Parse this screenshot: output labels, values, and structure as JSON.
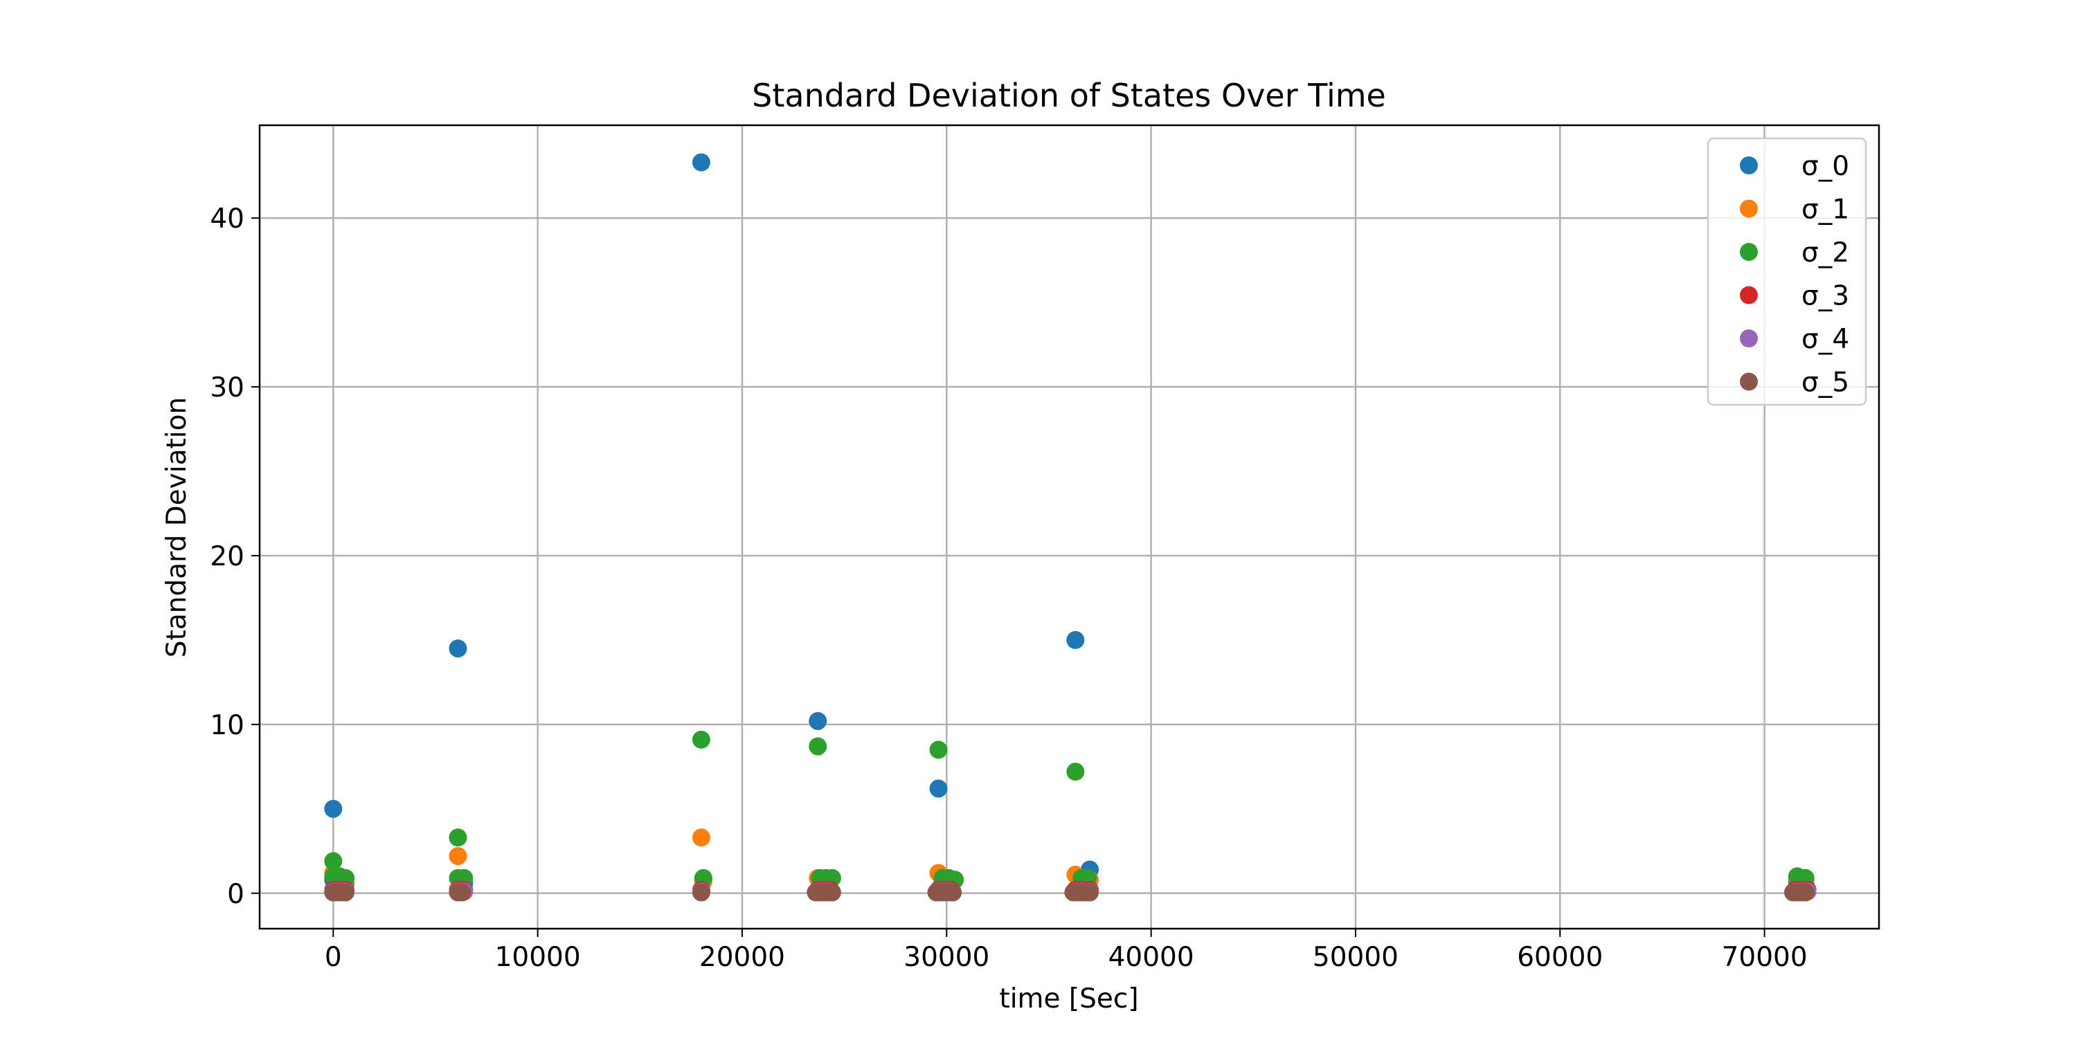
{
  "chart_data": {
    "type": "scatter",
    "title": "Standard Deviation of States Over Time",
    "xlabel": "time [Sec]",
    "ylabel": "Standard Deviation",
    "xlim": [
      -3600,
      75600
    ],
    "ylim": [
      -2.1,
      45.5
    ],
    "xticks": [
      0,
      10000,
      20000,
      30000,
      40000,
      50000,
      60000,
      70000
    ],
    "yticks": [
      0,
      10,
      20,
      30,
      40
    ],
    "grid": true,
    "legend_position": "upper-right",
    "series": [
      {
        "name": "σ_0",
        "color": "#1f77b4",
        "points": [
          [
            0,
            5.0
          ],
          [
            0,
            0.8
          ],
          [
            300,
            0.7
          ],
          [
            600,
            0.6
          ],
          [
            6100,
            14.5
          ],
          [
            6200,
            0.7
          ],
          [
            6400,
            0.6
          ],
          [
            18000,
            43.3
          ],
          [
            18100,
            0.8
          ],
          [
            23700,
            10.2
          ],
          [
            23900,
            0.7
          ],
          [
            24200,
            0.6
          ],
          [
            29600,
            6.2
          ],
          [
            29800,
            0.8
          ],
          [
            30200,
            0.7
          ],
          [
            36300,
            15.0
          ],
          [
            36600,
            0.8
          ],
          [
            37000,
            1.4
          ],
          [
            71600,
            0.7
          ],
          [
            72000,
            0.6
          ]
        ]
      },
      {
        "name": "σ_1",
        "color": "#ff7f0e",
        "points": [
          [
            0,
            1.2
          ],
          [
            300,
            0.9
          ],
          [
            600,
            0.8
          ],
          [
            6100,
            2.2
          ],
          [
            6300,
            0.8
          ],
          [
            18000,
            3.3
          ],
          [
            18100,
            0.7
          ],
          [
            23700,
            0.9
          ],
          [
            24000,
            0.8
          ],
          [
            24300,
            0.8
          ],
          [
            29600,
            1.2
          ],
          [
            29900,
            0.9
          ],
          [
            30200,
            0.8
          ],
          [
            36300,
            1.1
          ],
          [
            36600,
            0.9
          ],
          [
            37000,
            0.8
          ],
          [
            71600,
            0.9
          ],
          [
            72000,
            0.8
          ]
        ]
      },
      {
        "name": "σ_2",
        "color": "#2ca02c",
        "points": [
          [
            0,
            1.9
          ],
          [
            0,
            1.0
          ],
          [
            300,
            1.0
          ],
          [
            600,
            0.9
          ],
          [
            6100,
            3.3
          ],
          [
            6100,
            0.9
          ],
          [
            6400,
            0.9
          ],
          [
            18000,
            9.1
          ],
          [
            18100,
            0.9
          ],
          [
            23700,
            8.7
          ],
          [
            23800,
            0.9
          ],
          [
            24100,
            0.9
          ],
          [
            24400,
            0.9
          ],
          [
            29600,
            8.5
          ],
          [
            29800,
            0.9
          ],
          [
            30100,
            0.9
          ],
          [
            30400,
            0.8
          ],
          [
            36300,
            7.2
          ],
          [
            36600,
            0.9
          ],
          [
            36900,
            0.9
          ],
          [
            71600,
            1.0
          ],
          [
            72000,
            0.9
          ]
        ]
      },
      {
        "name": "σ_3",
        "color": "#d62728",
        "points": [
          [
            0,
            0.2
          ],
          [
            300,
            0.2
          ],
          [
            600,
            0.2
          ],
          [
            6100,
            0.2
          ],
          [
            6400,
            0.2
          ],
          [
            18000,
            0.2
          ],
          [
            23700,
            0.2
          ],
          [
            24000,
            0.2
          ],
          [
            24300,
            0.2
          ],
          [
            29600,
            0.2
          ],
          [
            29900,
            0.2
          ],
          [
            30200,
            0.2
          ],
          [
            36300,
            0.2
          ],
          [
            36600,
            0.2
          ],
          [
            37000,
            0.2
          ],
          [
            71500,
            0.2
          ],
          [
            71800,
            0.2
          ],
          [
            72100,
            0.2
          ]
        ]
      },
      {
        "name": "σ_4",
        "color": "#9467bd",
        "points": [
          [
            0,
            0.1
          ],
          [
            300,
            0.1
          ],
          [
            600,
            0.1
          ],
          [
            6100,
            0.1
          ],
          [
            6400,
            0.1
          ],
          [
            18000,
            0.1
          ],
          [
            23700,
            0.1
          ],
          [
            24000,
            0.1
          ],
          [
            24300,
            0.1
          ],
          [
            29600,
            0.1
          ],
          [
            29900,
            0.1
          ],
          [
            30200,
            0.1
          ],
          [
            36300,
            0.1
          ],
          [
            36600,
            0.1
          ],
          [
            37000,
            0.1
          ],
          [
            71500,
            0.1
          ],
          [
            71800,
            0.1
          ],
          [
            72100,
            0.1
          ]
        ]
      },
      {
        "name": "σ_5",
        "color": "#8c564b",
        "points": [
          [
            0,
            0.05
          ],
          [
            200,
            0.05
          ],
          [
            400,
            0.05
          ],
          [
            600,
            0.05
          ],
          [
            6100,
            0.05
          ],
          [
            6300,
            0.05
          ],
          [
            18000,
            0.05
          ],
          [
            23600,
            0.05
          ],
          [
            23800,
            0.05
          ],
          [
            24000,
            0.05
          ],
          [
            24200,
            0.05
          ],
          [
            24400,
            0.05
          ],
          [
            29500,
            0.05
          ],
          [
            29700,
            0.05
          ],
          [
            29900,
            0.05
          ],
          [
            30100,
            0.05
          ],
          [
            30300,
            0.05
          ],
          [
            36200,
            0.05
          ],
          [
            36400,
            0.05
          ],
          [
            36600,
            0.05
          ],
          [
            36800,
            0.05
          ],
          [
            37000,
            0.05
          ],
          [
            71400,
            0.05
          ],
          [
            71600,
            0.05
          ],
          [
            71800,
            0.05
          ],
          [
            72000,
            0.05
          ]
        ]
      }
    ]
  }
}
